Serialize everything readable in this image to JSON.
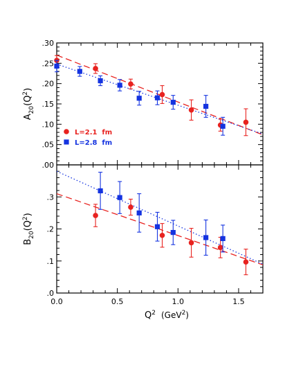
{
  "chart_data": [
    {
      "type": "scatter",
      "panel": "top",
      "ylabel": "A",
      "ylabel_sub": "20",
      "ylabel_tail": "(Q",
      "ylabel_sup": "2",
      "ylabel_end": ")",
      "xlim": [
        0,
        1.7
      ],
      "ylim": [
        0,
        0.3
      ],
      "ytick_labels": [
        ".00",
        ".05",
        ".10",
        ".15",
        ".20",
        ".25",
        ".30"
      ],
      "yticks": [
        0,
        0.05,
        0.1,
        0.15,
        0.2,
        0.25,
        0.3
      ],
      "grid": false,
      "legend_position": "lower-left",
      "legend": [
        {
          "label": "L=2.1  fm",
          "marker": "circle",
          "color": "#e8221f"
        },
        {
          "label": "L=2.8  fm",
          "marker": "square",
          "color": "#1433e0"
        }
      ],
      "series": [
        {
          "name": "L=2.1  fm",
          "marker": "circle",
          "color": "#e8221f",
          "x": [
            0.0,
            0.32,
            0.61,
            0.87,
            1.11,
            1.35,
            1.56
          ],
          "y": [
            0.257,
            0.237,
            0.199,
            0.173,
            0.135,
            0.098,
            0.105
          ],
          "err": [
            0.012,
            0.012,
            0.012,
            0.022,
            0.025,
            0.015,
            0.033
          ]
        },
        {
          "name": "L=2.8  fm",
          "marker": "square",
          "color": "#1433e0",
          "x": [
            0.0,
            0.19,
            0.36,
            0.52,
            0.68,
            0.83,
            0.96,
            1.23,
            1.37
          ],
          "y": [
            0.243,
            0.23,
            0.207,
            0.196,
            0.164,
            0.165,
            0.154,
            0.144,
            0.095
          ],
          "err": [
            0.014,
            0.012,
            0.012,
            0.014,
            0.017,
            0.017,
            0.017,
            0.027,
            0.022
          ]
        }
      ],
      "fit_lines": [
        {
          "color": "#e8221f",
          "style": "dashed",
          "x": [
            0,
            1.7
          ],
          "y": [
            0.27,
            0.074
          ]
        },
        {
          "color": "#1433e0",
          "style": "dotted",
          "x": [
            0,
            1.7
          ],
          "y": [
            0.248,
            0.076
          ]
        }
      ]
    },
    {
      "type": "scatter",
      "panel": "bottom",
      "ylabel": "B",
      "ylabel_sub": "20",
      "ylabel_tail": "(Q",
      "ylabel_sup": "2",
      "ylabel_end": ")",
      "xlabel": "Q",
      "xlabel_sup": "2",
      "xlabel_unit": "(GeV",
      "xlabel_unit_sup": "2",
      "xlabel_end": ")",
      "xlim": [
        0,
        1.7
      ],
      "ylim": [
        0,
        0.4
      ],
      "xtick_labels": [
        "0.0",
        "0.5",
        "1.0",
        "1.5"
      ],
      "xticks": [
        0,
        0.5,
        1.0,
        1.5
      ],
      "ytick_labels": [
        ".0",
        ".1",
        ".2",
        ".3"
      ],
      "yticks": [
        0,
        0.1,
        0.2,
        0.3
      ],
      "grid": false,
      "series": [
        {
          "name": "L=2.1  fm",
          "marker": "circle",
          "color": "#e8221f",
          "x": [
            0.32,
            0.61,
            0.87,
            1.11,
            1.35,
            1.56
          ],
          "y": [
            0.242,
            0.268,
            0.18,
            0.157,
            0.142,
            0.097
          ],
          "err": [
            0.035,
            0.025,
            0.037,
            0.045,
            0.032,
            0.04
          ]
        },
        {
          "name": "L=2.8  fm",
          "marker": "square",
          "color": "#1433e0",
          "x": [
            0.36,
            0.52,
            0.68,
            0.83,
            0.96,
            1.23,
            1.37
          ],
          "y": [
            0.319,
            0.298,
            0.25,
            0.207,
            0.189,
            0.173,
            0.17
          ],
          "err": [
            0.058,
            0.05,
            0.06,
            0.045,
            0.038,
            0.055,
            0.042
          ]
        }
      ],
      "fit_lines": [
        {
          "color": "#e8221f",
          "style": "dashed",
          "x": [
            0,
            1.7
          ],
          "y": [
            0.31,
            0.088
          ]
        },
        {
          "color": "#1433e0",
          "style": "dotted",
          "x": [
            0,
            1.7
          ],
          "y": [
            0.38,
            0.09
          ]
        }
      ]
    }
  ]
}
